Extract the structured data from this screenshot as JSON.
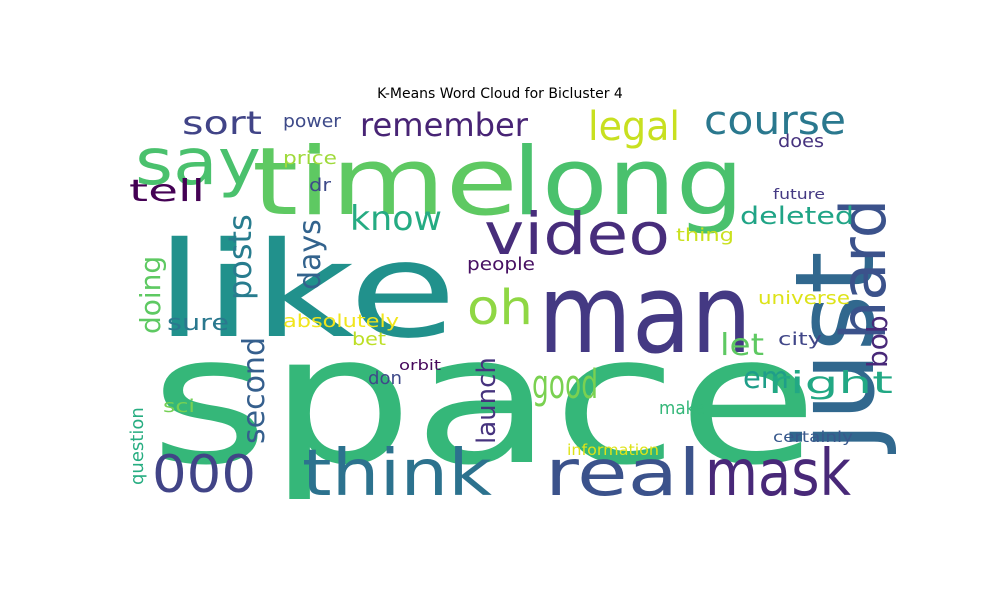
{
  "title": "K-Means Word Cloud for Bicluster 4",
  "words": [
    {
      "text": "space",
      "color": "#35b779"
    },
    {
      "text": "like",
      "color": "#21918c"
    },
    {
      "text": "time",
      "color": "#5ec962"
    },
    {
      "text": "long",
      "color": "#4ac16d"
    },
    {
      "text": "man",
      "color": "#443983"
    },
    {
      "text": "just",
      "color": "#31688e"
    },
    {
      "text": "say",
      "color": "#4ac16d"
    },
    {
      "text": "video",
      "color": "#472d7b"
    },
    {
      "text": "hard",
      "color": "#3b528b"
    },
    {
      "text": "think",
      "color": "#2c728e"
    },
    {
      "text": "real",
      "color": "#3b528b"
    },
    {
      "text": "mask",
      "color": "#482878"
    },
    {
      "text": "000",
      "color": "#414487"
    },
    {
      "text": "oh",
      "color": "#8fd744"
    },
    {
      "text": "good",
      "color": "#7ad151"
    },
    {
      "text": "course",
      "color": "#2a788e"
    },
    {
      "text": "remember",
      "color": "#482475"
    },
    {
      "text": "legal",
      "color": "#c8e020"
    },
    {
      "text": "know",
      "color": "#25ab82"
    },
    {
      "text": "posts",
      "color": "#287c8e"
    },
    {
      "text": "days",
      "color": "#33638d"
    },
    {
      "text": "sort",
      "color": "#414487"
    },
    {
      "text": "tell",
      "color": "#440154"
    },
    {
      "text": "doing",
      "color": "#5ec962"
    },
    {
      "text": "second",
      "color": "#355f8d"
    },
    {
      "text": "let",
      "color": "#5ec962"
    },
    {
      "text": "em",
      "color": "#1f9e89"
    },
    {
      "text": "right",
      "color": "#22a884"
    },
    {
      "text": "bob",
      "color": "#482878"
    },
    {
      "text": "launch",
      "color": "#46337e"
    },
    {
      "text": "deleted",
      "color": "#20a486"
    },
    {
      "text": "sure",
      "color": "#2a788e"
    },
    {
      "text": "power",
      "color": "#3e4a89"
    },
    {
      "text": "price",
      "color": "#9fda3a"
    },
    {
      "text": "dr",
      "color": "#3e4a89"
    },
    {
      "text": "does",
      "color": "#46327e"
    },
    {
      "text": "future",
      "color": "#443983"
    },
    {
      "text": "thing",
      "color": "#cae11f"
    },
    {
      "text": "people",
      "color": "#471063"
    },
    {
      "text": "universe",
      "color": "#dde318"
    },
    {
      "text": "absolutely",
      "color": "#f1e51d"
    },
    {
      "text": "city",
      "color": "#404688"
    },
    {
      "text": "bet",
      "color": "#bddf26"
    },
    {
      "text": "orbit",
      "color": "#46085c"
    },
    {
      "text": "don",
      "color": "#3e4989"
    },
    {
      "text": "sci",
      "color": "#75d054"
    },
    {
      "text": "make",
      "color": "#35b779"
    },
    {
      "text": "question",
      "color": "#27ad81"
    },
    {
      "text": "information",
      "color": "#dde318"
    },
    {
      "text": "certainly",
      "color": "#38588c"
    }
  ]
}
